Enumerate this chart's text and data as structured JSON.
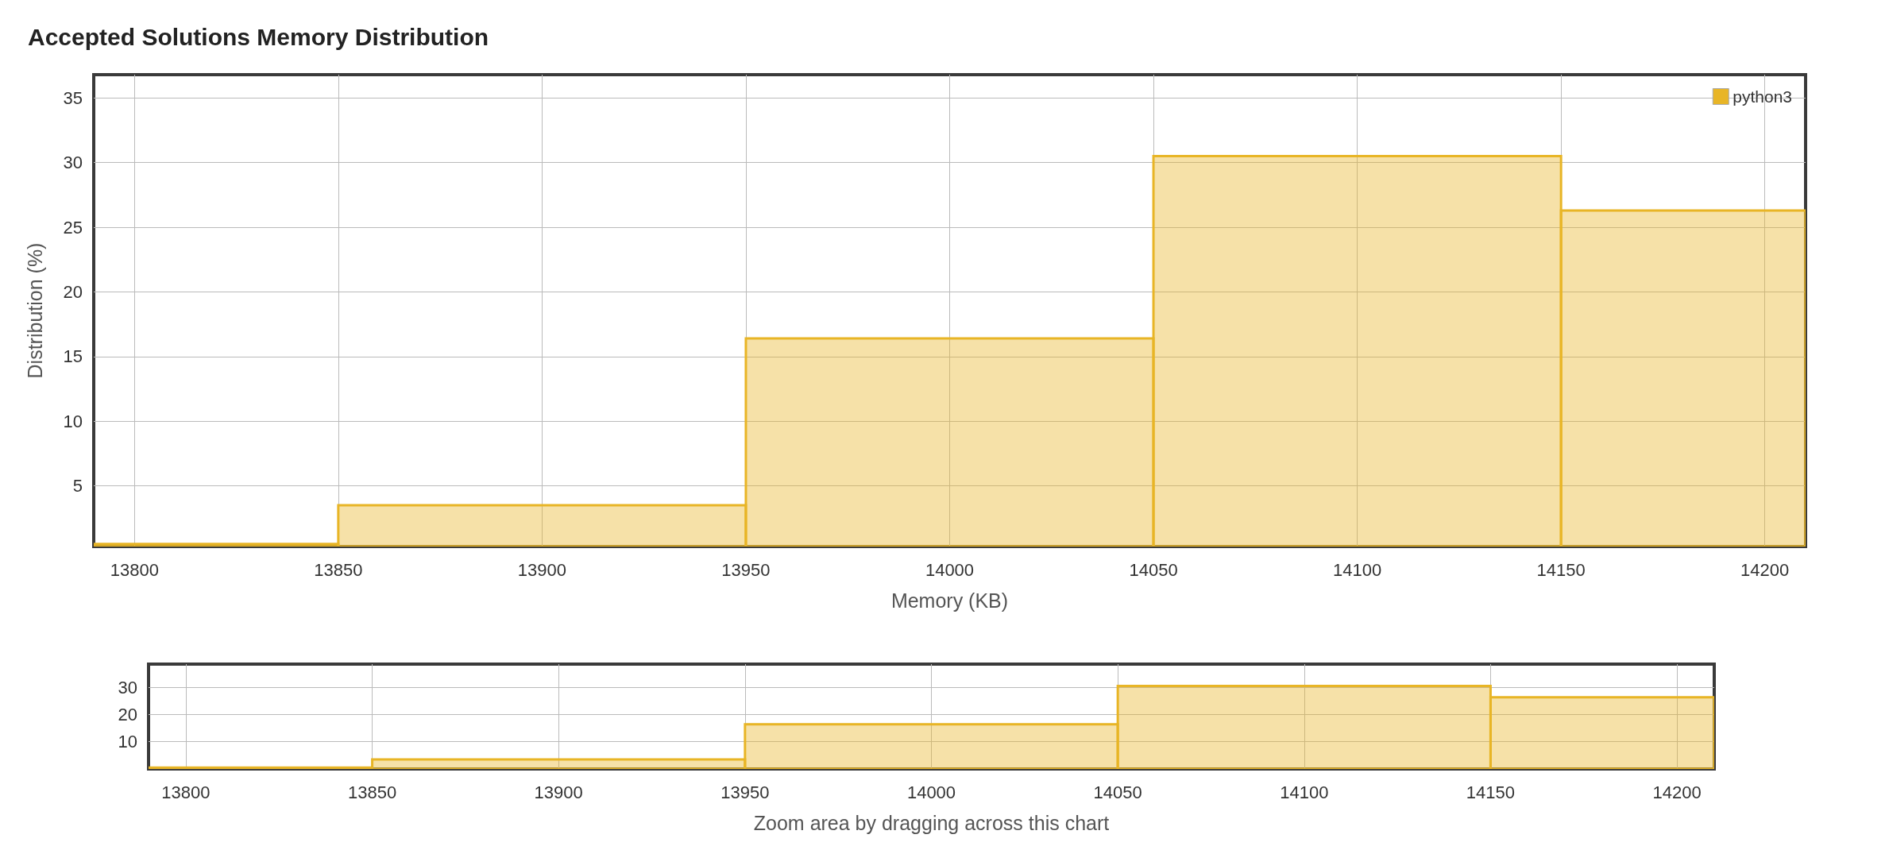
{
  "chart_data": [
    {
      "type": "histogram",
      "title": "Accepted Solutions Memory Distribution",
      "xlabel": "Memory (KB)",
      "ylabel": "Distribution (%)",
      "bins": [
        13790,
        13850,
        13950,
        14050,
        14150,
        14210
      ],
      "series": [
        {
          "name": "python3",
          "color": "#e8b526",
          "values": [
            0.5,
            3.5,
            16.4,
            30.5,
            26.3
          ]
        }
      ],
      "xlim": [
        13790,
        14210
      ],
      "xticks": [
        13800,
        13850,
        13900,
        13950,
        14000,
        14050,
        14100,
        14150,
        14200
      ],
      "ylim": [
        0.3,
        36.8
      ],
      "yticks": [
        5,
        10,
        15,
        20,
        25,
        30,
        35
      ],
      "grid": true,
      "legend": "top right"
    },
    {
      "type": "histogram",
      "xlabel": "Zoom area by dragging across this chart",
      "bins": [
        13790,
        13850,
        13950,
        14050,
        14150,
        14210
      ],
      "series": [
        {
          "color": "#e8b526",
          "values": [
            0.5,
            3.5,
            16.4,
            30.5,
            26.3
          ]
        }
      ],
      "xlim": [
        13790,
        14210
      ],
      "xticks": [
        13800,
        13850,
        13900,
        13950,
        14000,
        14050,
        14100,
        14150,
        14200
      ],
      "ylim": [
        0,
        38.5
      ],
      "yticks": [
        10,
        20,
        30
      ],
      "grid": true,
      "legend": false
    }
  ]
}
